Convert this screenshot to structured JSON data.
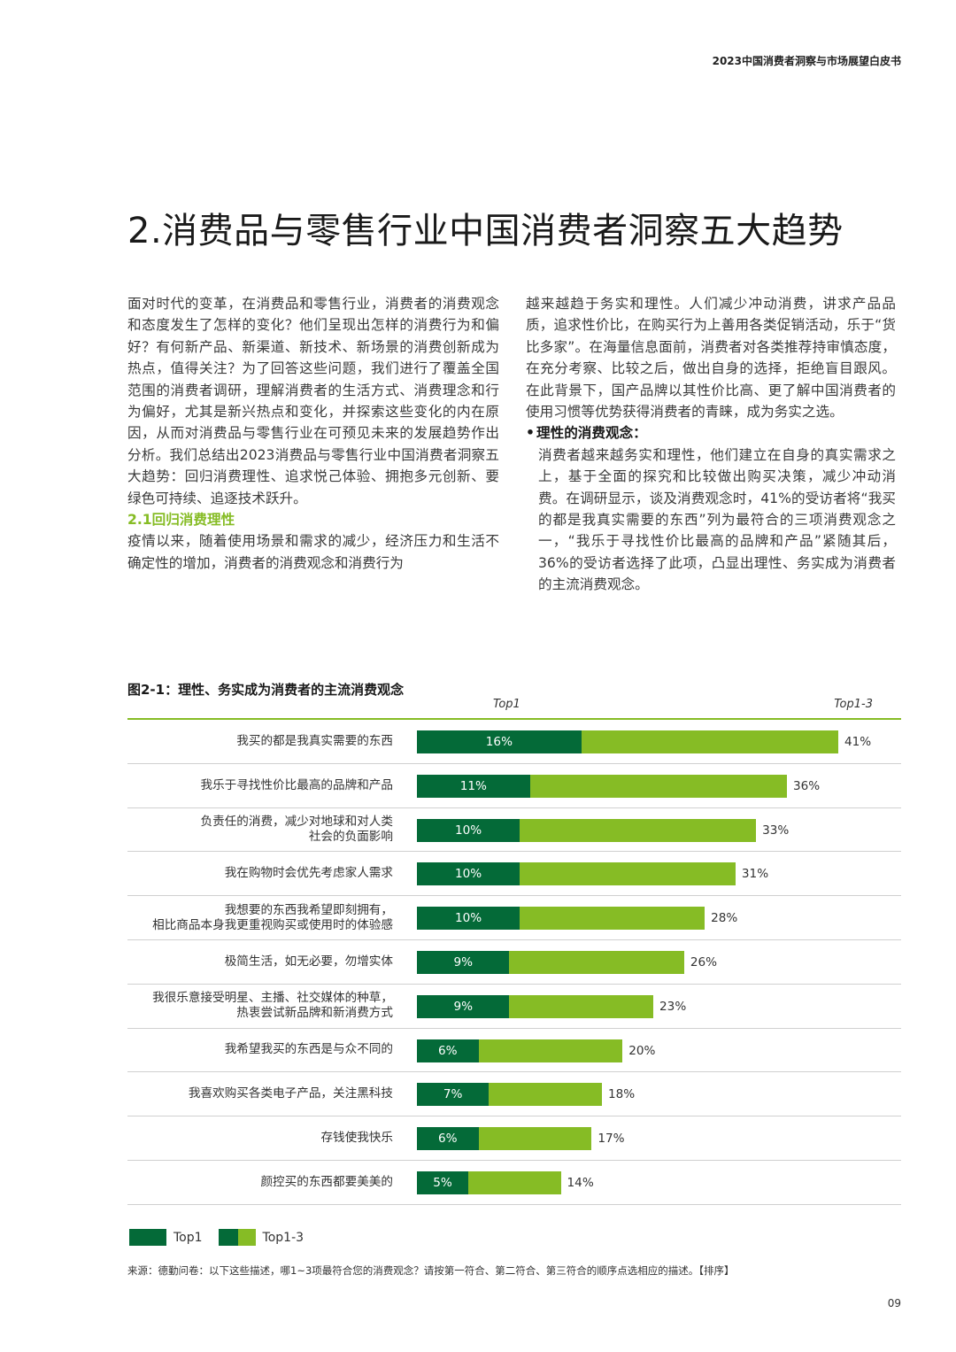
{
  "header": {
    "title": "2023中国消费者洞察与市场展望白皮书"
  },
  "section": {
    "title": "2.消费品与零售行业中国消费者洞察五大趋势"
  },
  "left_column": {
    "p1": "面对时代的变革，在消费品和零售行业，消费者的消费观念和态度发生了怎样的变化？他们呈现出怎样的消费行为和偏好？有何新产品、新渠道、新技术、新场景的消费创新成为热点，值得关注？为了回答这些问题，我们进行了覆盖全国范围的消费者调研，理解消费者的生活方式、消费理念和行为偏好，尤其是新兴热点和变化，并探索这些变化的内在原因，从而对消费品与零售行业在可预见未来的发展趋势作出分析。我们总结出2023消费品与零售行业中国消费者洞察五大趋势：回归消费理性、追求悦己体验、拥抱多元创新、要绿色可持续、追逐技术跃升。",
    "subhead": "2.1回归消费理性",
    "p2": "疫情以来，随着使用场景和需求的减少，经济压力和生活不确定性的增加，消费者的消费观念和消费行为"
  },
  "right_column": {
    "p1": "越来越趋于务实和理性。人们减少冲动消费，讲求产品品质，追求性价比，在购买行为上善用各类促销活动，乐于“货比多家”。在海量信息面前，消费者对各类推荐持审慎态度，在充分考察、比较之后，做出自身的选择，拒绝盲目跟风。在此背景下，国产品牌以其性价比高、更了解中国消费者的使用习惯等优势获得消费者的青睐，成为务实之选。",
    "bullet_title": "理性的消费观念：",
    "bullet_text": "消费者越来越务实和理性，他们建立在自身的真实需求之上，基于全面的探究和比较做出购买决策，减少冲动消费。在调研显示，谈及消费观念时，41%的受访者将“我买的都是我真实需要的东西”列为最符合的三项消费观念之一，“我乐于寻找性价比最高的品牌和产品”紧随其后，36%的受访者选择了此项，凸显出理性、务实成为消费者的主流消费观念。"
  },
  "figure": {
    "title": "图2-1：理性、务实成为消费者的主流消费观念",
    "col_top1": "Top1",
    "col_top13": "Top1-3",
    "legend_top1": "Top1",
    "legend_top13": "Top1-3",
    "source": "来源：德勤问卷：以下这些描述，哪1~3项最符合您的消费观念？请按第一符合、第二符合、第三符合的顺序点选相应的描述。【排序】"
  },
  "chart_data": {
    "type": "bar",
    "orientation": "horizontal",
    "categories": [
      "我买的都是我真实需要的东西",
      "我乐于寻找性价比最高的品牌和产品",
      "负责任的消费，减少对地球和对人类\n社会的负面影响",
      "我在购物时会优先考虑家人需求",
      "我想要的东西我希望即刻拥有，\n相比商品本身我更重视购买或使用时的体验感",
      "极简生活，如无必要，勿增实体",
      "我很乐意接受明星、主播、社交媒体的种草，\n热衷尝试新品牌和新消费方式",
      "我希望我买的东西是与众不同的",
      "我喜欢购买各类电子产品，关注黑科技",
      "存钱使我快乐",
      "颜控买的东西都要美美的"
    ],
    "series": [
      {
        "name": "Top1",
        "values": [
          16,
          11,
          10,
          10,
          10,
          9,
          9,
          6,
          7,
          6,
          5
        ],
        "color": "#046a38"
      },
      {
        "name": "Top1-3",
        "values": [
          41,
          36,
          33,
          31,
          28,
          26,
          23,
          20,
          18,
          17,
          14
        ],
        "color": "#86bc25"
      }
    ],
    "value_suffix": "%",
    "xlim": [
      0,
      41
    ]
  },
  "page": {
    "number": "09"
  }
}
